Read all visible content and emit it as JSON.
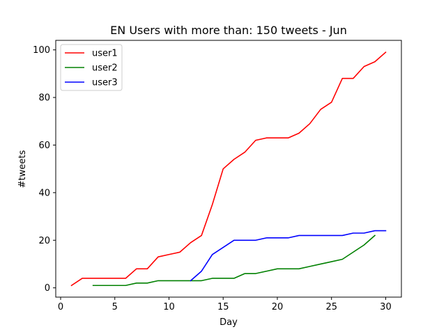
{
  "chart_data": {
    "type": "line",
    "title": "EN Users with more than: 150 tweets - Jun",
    "xlabel": "Day",
    "ylabel": "#tweets",
    "xlim": [
      -0.45,
      31.45
    ],
    "ylim": [
      -3.9,
      104
    ],
    "xticks": [
      0,
      5,
      10,
      15,
      20,
      25,
      30
    ],
    "yticks": [
      0,
      20,
      40,
      60,
      80,
      100
    ],
    "grid": false,
    "legend_position": "top-left",
    "series": [
      {
        "name": "user1",
        "color": "#ff0000",
        "x": [
          1,
          2,
          3,
          4,
          5,
          6,
          7,
          8,
          9,
          10,
          11,
          12,
          13,
          14,
          15,
          16,
          17,
          18,
          19,
          20,
          21,
          22,
          23,
          24,
          25,
          26,
          27,
          28,
          29,
          30
        ],
        "y": [
          1,
          4,
          4,
          4,
          4,
          4,
          8,
          8,
          13,
          14,
          15,
          19,
          22,
          35,
          50,
          54,
          57,
          62,
          63,
          63,
          63,
          65,
          69,
          75,
          78,
          88,
          88,
          93,
          95,
          99
        ]
      },
      {
        "name": "user2",
        "color": "#008000",
        "x": [
          3,
          4,
          5,
          6,
          7,
          8,
          9,
          10,
          11,
          12,
          13,
          14,
          15,
          16,
          17,
          18,
          19,
          20,
          21,
          22,
          23,
          24,
          25,
          26,
          27,
          28,
          29
        ],
        "y": [
          1,
          1,
          1,
          1,
          2,
          2,
          3,
          3,
          3,
          3,
          3,
          4,
          4,
          4,
          6,
          6,
          7,
          8,
          8,
          8,
          9,
          10,
          11,
          12,
          15,
          18,
          22
        ]
      },
      {
        "name": "user3",
        "color": "#0000ff",
        "x": [
          12,
          13,
          14,
          15,
          16,
          17,
          18,
          19,
          20,
          21,
          22,
          23,
          24,
          25,
          26,
          27,
          28,
          29,
          30
        ],
        "y": [
          3,
          7,
          14,
          17,
          20,
          20,
          20,
          21,
          21,
          21,
          22,
          22,
          22,
          22,
          22,
          23,
          23,
          24,
          24
        ]
      }
    ]
  }
}
